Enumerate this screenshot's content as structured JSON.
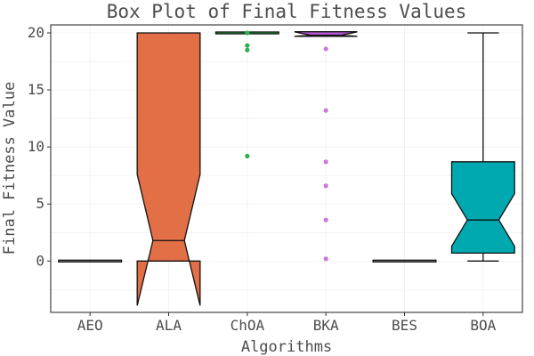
{
  "chart_data": {
    "type": "box",
    "title": "Box Plot of Final Fitness Values",
    "xlabel": "Algorithms",
    "ylabel": "Final Fitness Value",
    "ylim": [
      -4.5,
      20.7
    ],
    "y_ticks": [
      0,
      5,
      10,
      15,
      20
    ],
    "grid": true,
    "legend": "none",
    "notched": true,
    "categories": [
      "AEO",
      "ALA",
      "ChOA",
      "BKA",
      "BES",
      "BOA"
    ],
    "boxes": [
      {
        "name": "AEO",
        "min": 0,
        "q1": 0,
        "median": 0,
        "q3": 0,
        "max": 0,
        "notch_low": 0,
        "notch_high": 0,
        "fill": "#8d8d8d",
        "outliers": [],
        "outlier_color": "#8d8d8d"
      },
      {
        "name": "ALA",
        "min": 0,
        "q1": 0,
        "median": 1.8,
        "q3": 20,
        "max": 20,
        "notch_low": -3.9,
        "notch_high": 7.6,
        "fill": "#e36f47",
        "outliers": [],
        "outlier_color": "#e36f47"
      },
      {
        "name": "ChOA",
        "min": 20,
        "q1": 20,
        "median": 20,
        "q3": 20,
        "max": 20,
        "notch_low": 20,
        "notch_high": 20,
        "fill": "#2bb24c",
        "outliers": [
          20,
          18.9,
          18.5,
          9.2
        ],
        "outlier_color": "#2bb24c"
      },
      {
        "name": "BKA",
        "min": 19.7,
        "q1": 19.7,
        "median": 19.8,
        "q3": 20.1,
        "max": 20.1,
        "notch_low": 19.7,
        "notch_high": 20.1,
        "fill": "#b85ad6",
        "outliers": [
          18.6,
          13.2,
          8.7,
          6.6,
          3.6,
          0.2
        ],
        "outlier_color": "#c77ad6"
      },
      {
        "name": "BES",
        "min": 0,
        "q1": 0,
        "median": 0,
        "q3": 0,
        "max": 0,
        "notch_low": 0,
        "notch_high": 0,
        "fill": "#8d8d8d",
        "outliers": [],
        "outlier_color": "#8d8d8d"
      },
      {
        "name": "BOA",
        "min": 0,
        "q1": 0.7,
        "median": 3.6,
        "q3": 8.7,
        "max": 20,
        "notch_low": 1.3,
        "notch_high": 5.9,
        "fill": "#00a9b0",
        "outliers": [],
        "outlier_color": "#00a9b0"
      }
    ]
  }
}
